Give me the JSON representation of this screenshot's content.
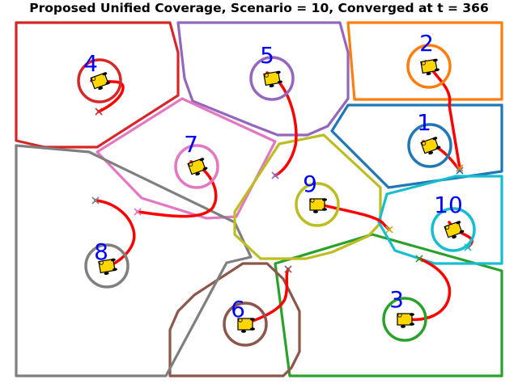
{
  "title": "Proposed Unified Coverage, Scenario = 10, Converged at t = 366",
  "colors": {
    "path": "#ff0000",
    "robot_body": "#ffd700",
    "robot_outline": "#000000",
    "label": "#0000ff"
  },
  "robots": [
    {
      "id": "1",
      "color": "#1f77b4"
    },
    {
      "id": "2",
      "color": "#ff7f0e"
    },
    {
      "id": "3",
      "color": "#2ca02c"
    },
    {
      "id": "4",
      "color": "#d62728"
    },
    {
      "id": "5",
      "color": "#9467bd"
    },
    {
      "id": "6",
      "color": "#8c564b"
    },
    {
      "id": "7",
      "color": "#e377c2"
    },
    {
      "id": "8",
      "color": "#7f7f7f"
    },
    {
      "id": "9",
      "color": "#bcbd22"
    },
    {
      "id": "10",
      "color": "#17becf"
    }
  ]
}
